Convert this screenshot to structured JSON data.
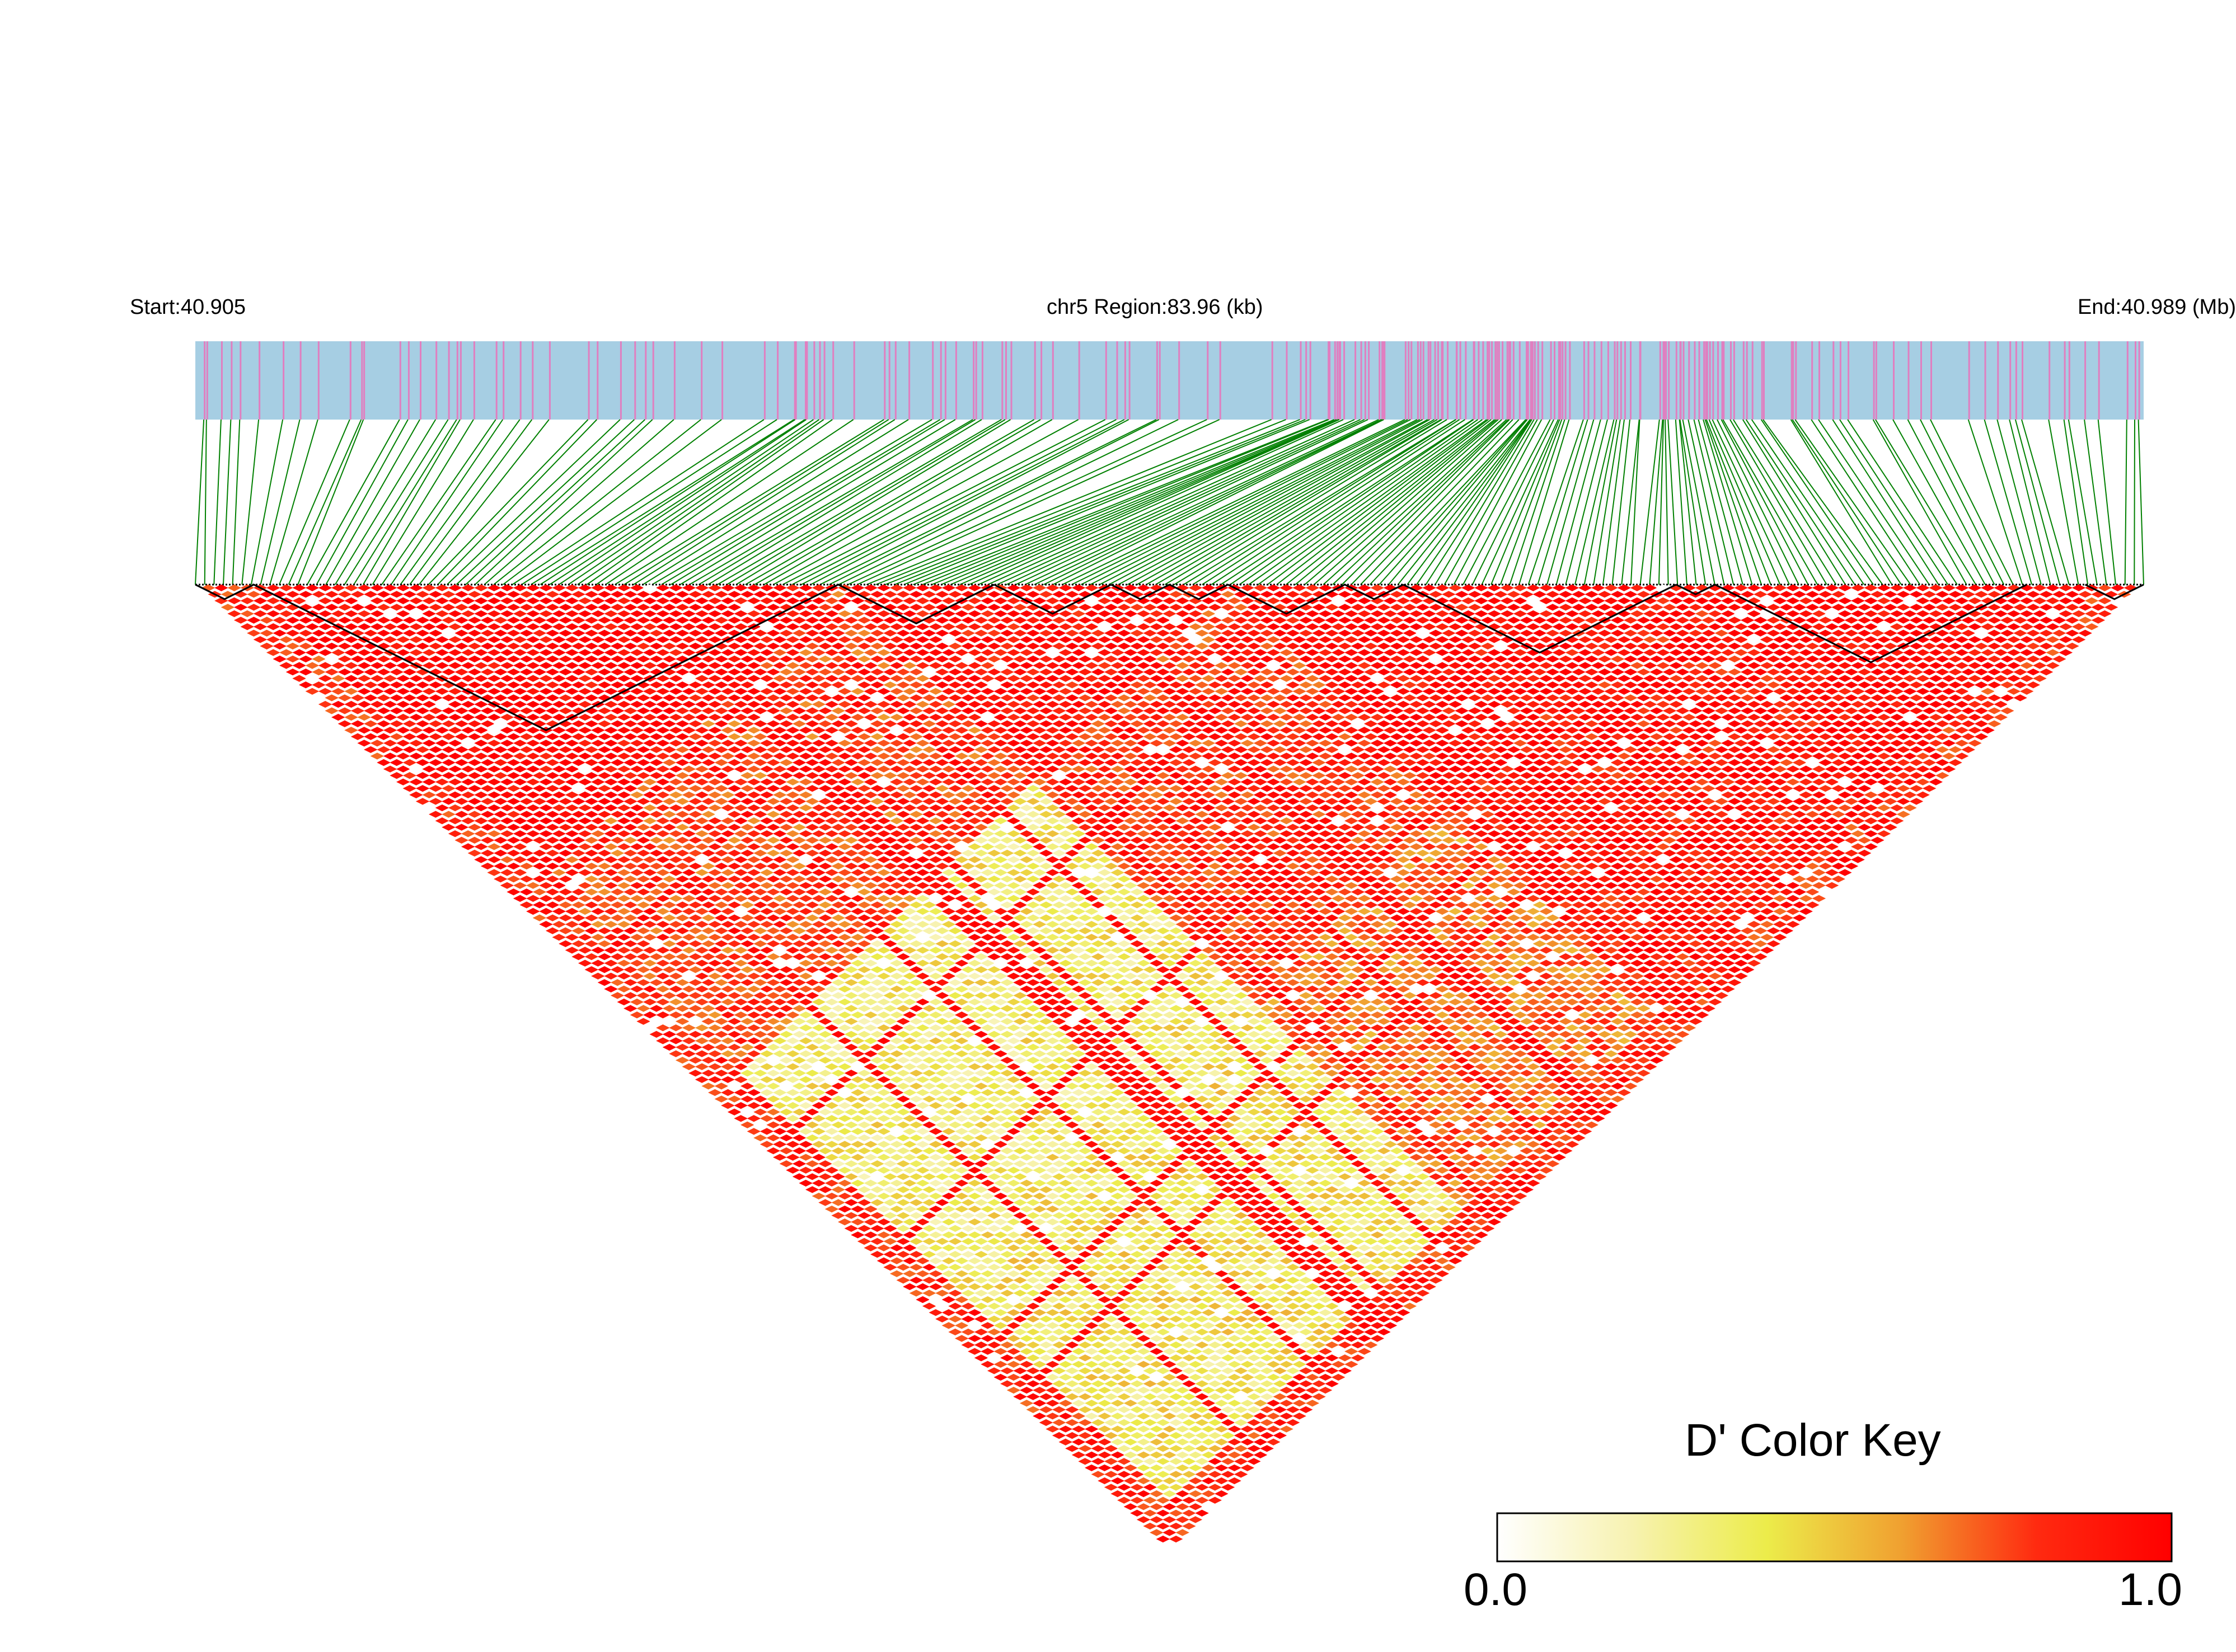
{
  "chart_data": {
    "type": "heatmap",
    "subtype": "linkage-disequilibrium triangle",
    "header": {
      "start": "Start:40.905",
      "region": "chr5 Region:83.96 (kb)",
      "end": "End:40.989 (Mb)"
    },
    "region_mb": [
      40.905,
      40.989
    ],
    "metric": "D'",
    "color_key": {
      "title": "D' Color Key",
      "min_label": "0.0",
      "max_label": "1.0",
      "range": [
        0.0,
        1.0
      ],
      "stops": [
        "#ffffff",
        "#f7f2b0",
        "#ecec4a",
        "#f0a030",
        "#ff2a10",
        "#ff0000"
      ]
    },
    "colors": {
      "track_background": "#a6cee3",
      "track_marker": "#e07fc0",
      "connector_lines": "#008000",
      "block_outline": "#000000"
    },
    "zones": [
      {
        "name": "block-1",
        "from": 0.03,
        "to": 0.33,
        "level": 0.98
      },
      {
        "name": "block-2",
        "from": 0.33,
        "to": 0.53,
        "level": 0.93
      },
      {
        "name": "block-3",
        "from": 0.53,
        "to": 0.76,
        "level": 0.95
      },
      {
        "name": "block-4",
        "from": 0.76,
        "to": 0.97,
        "level": 0.97
      },
      {
        "name": "cross-1-2",
        "a": 0.03,
        "b": 0.33,
        "c": 0.33,
        "d": 0.53,
        "level": 0.78
      },
      {
        "name": "cross-2-3",
        "a": 0.33,
        "b": 0.53,
        "c": 0.53,
        "d": 0.76,
        "level": 0.82
      },
      {
        "name": "cross-3-4",
        "a": 0.53,
        "b": 0.76,
        "c": 0.76,
        "d": 0.97,
        "level": 0.9
      },
      {
        "name": "cross-1-3",
        "a": 0.03,
        "b": 0.33,
        "c": 0.53,
        "d": 0.76,
        "level": 0.35
      },
      {
        "name": "cross-2-4",
        "a": 0.33,
        "b": 0.53,
        "c": 0.76,
        "d": 0.97,
        "level": 0.7
      },
      {
        "name": "cross-1-4",
        "a": 0.03,
        "b": 0.33,
        "c": 0.76,
        "d": 0.97,
        "level": 0.38
      }
    ],
    "haplotype_blocks": [
      [
        0.0,
        0.03
      ],
      [
        0.03,
        0.33
      ],
      [
        0.33,
        0.41
      ],
      [
        0.41,
        0.47
      ],
      [
        0.47,
        0.5
      ],
      [
        0.5,
        0.53
      ],
      [
        0.53,
        0.59
      ],
      [
        0.59,
        0.62
      ],
      [
        0.62,
        0.76
      ],
      [
        0.76,
        0.78
      ],
      [
        0.78,
        0.94
      ],
      [
        0.97,
        1.0
      ]
    ]
  }
}
